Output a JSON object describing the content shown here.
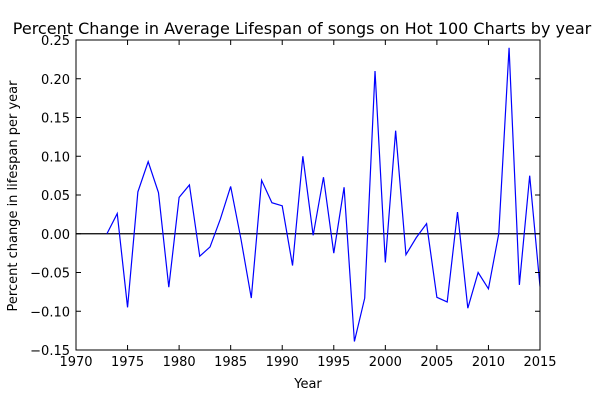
{
  "chart_data": {
    "type": "line",
    "title": "Percent Change in Average Lifespan of songs on Hot 100 Charts by year",
    "xlabel": "Year",
    "ylabel": "Percent change in lifespan per year",
    "xlim": [
      1970,
      2015
    ],
    "ylim": [
      -0.15,
      0.25
    ],
    "xticks": [
      1970,
      1975,
      1980,
      1985,
      1990,
      1995,
      2000,
      2005,
      2010,
      2015
    ],
    "yticks": [
      -0.15,
      -0.1,
      -0.05,
      0.0,
      0.05,
      0.1,
      0.15,
      0.2,
      0.25
    ],
    "xtick_labels": [
      "1970",
      "1975",
      "1980",
      "1985",
      "1990",
      "1995",
      "2000",
      "2005",
      "2010",
      "2015"
    ],
    "ytick_labels": [
      "−0.15",
      "−0.10",
      "−0.05",
      "0.00",
      "0.05",
      "0.10",
      "0.15",
      "0.20",
      "0.25"
    ],
    "grid": false,
    "reference_line": {
      "y": 0,
      "color": "#000000"
    },
    "series": [
      {
        "color": "#0000ff",
        "x": [
          1973,
          1974,
          1975,
          1976,
          1977,
          1978,
          1979,
          1980,
          1981,
          1982,
          1983,
          1984,
          1985,
          1986,
          1987,
          1988,
          1989,
          1990,
          1991,
          1992,
          1993,
          1994,
          1995,
          1996,
          1997,
          1998,
          1999,
          2000,
          2001,
          2002,
          2003,
          2004,
          2005,
          2006,
          2007,
          2008,
          2009,
          2010,
          2011,
          2012,
          2013,
          2014,
          2015
        ],
        "y": [
          0.0,
          0.026,
          -0.095,
          0.054,
          0.093,
          0.053,
          -0.069,
          0.047,
          0.063,
          -0.029,
          -0.017,
          0.019,
          0.061,
          -0.007,
          -0.083,
          0.069,
          0.04,
          0.036,
          -0.041,
          0.1,
          -0.002,
          0.073,
          -0.025,
          0.06,
          -0.139,
          -0.083,
          0.21,
          -0.037,
          0.133,
          -0.027,
          -0.005,
          0.013,
          -0.082,
          -0.088,
          0.028,
          -0.096,
          -0.05,
          -0.071,
          0.0,
          0.24,
          -0.066,
          0.075,
          -0.068
        ]
      }
    ]
  }
}
